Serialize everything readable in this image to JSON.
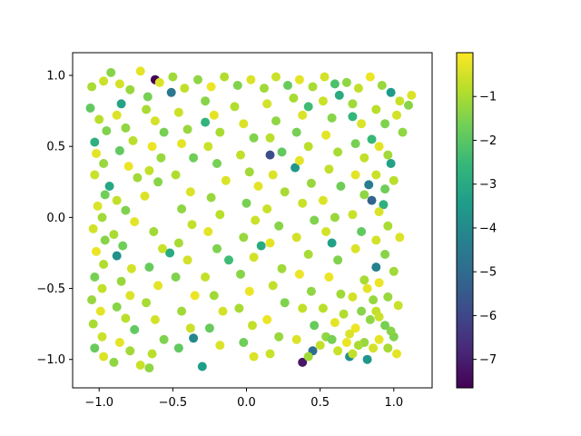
{
  "figure": {
    "background": "#ffffff"
  },
  "chart_data": {
    "type": "scatter",
    "title": "",
    "xlabel": "",
    "ylabel": "",
    "xlim": [
      -1.18,
      1.26
    ],
    "ylim": [
      -1.2,
      1.16
    ],
    "xticks": [
      -1.0,
      -0.5,
      0.0,
      0.5,
      1.0
    ],
    "yticks": [
      -1.0,
      -0.5,
      0.0,
      0.5,
      1.0
    ],
    "xtick_labels": [
      "−1.0",
      "−0.5",
      "0.0",
      "0.5",
      "1.0"
    ],
    "ytick_labels": [
      "−1.0",
      "−0.5",
      "0.0",
      "0.5",
      "1.0"
    ],
    "grid": false,
    "colormap": "viridis",
    "colorbar": {
      "range": [
        -7.65,
        0.0
      ],
      "ticks": [
        -1,
        -2,
        -3,
        -4,
        -5,
        -6,
        -7
      ],
      "tick_labels": [
        "−1",
        "−2",
        "−3",
        "−4",
        "−5",
        "−6",
        "−7"
      ]
    },
    "viridis_stops": [
      "#440154",
      "#482878",
      "#3e4989",
      "#31688e",
      "#26828e",
      "#1f9e89",
      "#35b779",
      "#6ece58",
      "#b5de2b",
      "#fde725"
    ],
    "points_note_x_y_c": "each point is [x, y, color value]",
    "points": [
      [
        -0.62,
        0.97,
        -7.6
      ],
      [
        0.16,
        0.44,
        -5.8
      ],
      [
        0.38,
        -1.02,
        -7.2
      ],
      [
        -0.51,
        0.88,
        -4.6
      ],
      [
        0.98,
        0.88,
        -3.5
      ],
      [
        0.85,
        0.12,
        -5.2
      ],
      [
        0.83,
        0.23,
        -4.4
      ],
      [
        -0.36,
        -0.85,
        -4.1
      ],
      [
        -0.85,
        0.8,
        -3.2
      ],
      [
        -0.88,
        -0.27,
        -3.8
      ],
      [
        0.45,
        -0.94,
        -4.9
      ],
      [
        -0.3,
        -1.05,
        -3.4
      ],
      [
        0.63,
        0.86,
        -3.0
      ],
      [
        0.7,
        -0.98,
        -3.9
      ],
      [
        0.33,
        0.35,
        -3.6
      ],
      [
        0.58,
        -0.18,
        -3.3
      ],
      [
        0.82,
        -1.0,
        -3.6
      ],
      [
        0.88,
        -0.35,
        -4.3
      ],
      [
        0.1,
        -0.2,
        -3.0
      ],
      [
        -1.03,
        0.53,
        -2.8
      ],
      [
        0.93,
        0.09,
        -2.8
      ],
      [
        0.72,
        0.71,
        -2.6
      ],
      [
        -0.93,
        0.22,
        -3.1
      ],
      [
        0.42,
        0.78,
        -2.4
      ],
      [
        -0.28,
        0.67,
        -2.7
      ],
      [
        0.6,
        0.94,
        -2.2
      ],
      [
        0.85,
        0.55,
        -2.5
      ],
      [
        0.98,
        0.38,
        -3.3
      ],
      [
        -0.12,
        -0.3,
        -2.4
      ],
      [
        -0.52,
        -0.25,
        -3.0
      ],
      [
        -1.05,
        0.92,
        -1.0
      ],
      [
        -0.97,
        0.96,
        -0.6
      ],
      [
        -0.92,
        1.02,
        -1.4
      ],
      [
        -0.86,
        0.94,
        -0.5
      ],
      [
        -0.79,
        0.9,
        -1.2
      ],
      [
        -0.72,
        1.03,
        -0.3
      ],
      [
        -0.67,
        0.85,
        -1.6
      ],
      [
        -0.59,
        0.95,
        -0.4
      ],
      [
        -0.5,
        0.99,
        -1.1
      ],
      [
        -0.42,
        0.91,
        -0.7
      ],
      [
        -0.33,
        0.97,
        -1.3
      ],
      [
        -0.24,
        0.92,
        -0.2
      ],
      [
        -0.15,
        0.99,
        -0.9
      ],
      [
        -0.06,
        0.93,
        -1.5
      ],
      [
        0.03,
        0.97,
        -0.4
      ],
      [
        0.12,
        0.91,
        -1.1
      ],
      [
        0.2,
        0.99,
        -0.6
      ],
      [
        0.28,
        0.93,
        -1.8
      ],
      [
        0.36,
        0.97,
        -0.3
      ],
      [
        0.45,
        0.92,
        -1.0
      ],
      [
        0.53,
        0.99,
        -0.5
      ],
      [
        0.68,
        0.95,
        -1.3
      ],
      [
        0.76,
        0.91,
        -0.7
      ],
      [
        0.84,
        0.99,
        -0.2
      ],
      [
        0.92,
        0.93,
        -1.2
      ],
      [
        1.04,
        0.82,
        -0.6
      ],
      [
        1.1,
        0.79,
        -1.4
      ],
      [
        1.12,
        0.86,
        -0.4
      ],
      [
        -1.06,
        0.77,
        -1.9
      ],
      [
        -1.0,
        0.69,
        -0.8
      ],
      [
        -0.95,
        0.61,
        -1.5
      ],
      [
        -1.02,
        0.45,
        -0.3
      ],
      [
        -0.97,
        0.38,
        -1.2
      ],
      [
        -1.03,
        0.3,
        -0.6
      ],
      [
        -0.96,
        0.16,
        -1.7
      ],
      [
        -1.01,
        0.08,
        -0.4
      ],
      [
        -0.98,
        0.0,
        -1.1
      ],
      [
        -1.04,
        -0.08,
        -0.5
      ],
      [
        -0.96,
        -0.16,
        -1.4
      ],
      [
        -1.02,
        -0.24,
        -0.2
      ],
      [
        -0.97,
        -0.33,
        -0.9
      ],
      [
        -1.03,
        -0.42,
        -1.6
      ],
      [
        -0.98,
        -0.5,
        -0.7
      ],
      [
        -1.05,
        -0.58,
        -1.2
      ],
      [
        -0.99,
        -0.66,
        -0.3
      ],
      [
        -1.04,
        -0.75,
        -1.0
      ],
      [
        -0.98,
        -0.84,
        -0.6
      ],
      [
        -1.03,
        -0.92,
        -1.8
      ],
      [
        -0.97,
        -0.98,
        -0.4
      ],
      [
        -0.9,
        -1.02,
        -1.3
      ],
      [
        -0.88,
        0.72,
        -0.4
      ],
      [
        -0.82,
        0.63,
        -1.3
      ],
      [
        -0.77,
        0.54,
        -0.8
      ],
      [
        -0.86,
        0.47,
        -1.9
      ],
      [
        -0.8,
        0.36,
        -0.2
      ],
      [
        -0.74,
        0.28,
        -1.1
      ],
      [
        -0.88,
        0.12,
        -0.7
      ],
      [
        -0.82,
        0.05,
        -1.5
      ],
      [
        -0.76,
        -0.03,
        -0.3
      ],
      [
        -0.9,
        -0.12,
        -1.0
      ],
      [
        -0.84,
        -0.2,
        -1.7
      ],
      [
        -0.78,
        -0.36,
        -0.5
      ],
      [
        -0.85,
        -0.45,
        -1.2
      ],
      [
        -0.79,
        -0.55,
        -0.4
      ],
      [
        -0.88,
        -0.63,
        -1.4
      ],
      [
        -0.82,
        -0.71,
        -0.8
      ],
      [
        -0.76,
        -0.79,
        -1.9
      ],
      [
        -0.86,
        -0.88,
        -0.3
      ],
      [
        -0.79,
        -0.94,
        -1.1
      ],
      [
        -0.72,
        -1.04,
        -0.6
      ],
      [
        -0.68,
        0.76,
        -1.0
      ],
      [
        -0.62,
        0.68,
        -0.5
      ],
      [
        -0.56,
        0.6,
        -1.6
      ],
      [
        -0.64,
        0.5,
        -0.2
      ],
      [
        -0.58,
        0.42,
        -1.2
      ],
      [
        -0.66,
        0.33,
        -0.7
      ],
      [
        -0.6,
        0.25,
        -1.4
      ],
      [
        -0.69,
        0.15,
        -0.4
      ],
      [
        -0.63,
        -0.1,
        -1.1
      ],
      [
        -0.57,
        -0.22,
        -0.6
      ],
      [
        -0.66,
        -0.35,
        -1.8
      ],
      [
        -0.6,
        -0.48,
        -0.3
      ],
      [
        -0.68,
        -0.6,
        -1.0
      ],
      [
        -0.62,
        -0.72,
        -0.5
      ],
      [
        -0.56,
        -0.86,
        -1.5
      ],
      [
        -0.64,
        -0.96,
        -0.8
      ],
      [
        -0.66,
        -1.06,
        -1.3
      ],
      [
        -0.46,
        0.74,
        -0.6
      ],
      [
        -0.4,
        0.62,
        -1.2
      ],
      [
        -0.44,
        0.52,
        -0.3
      ],
      [
        -0.36,
        0.42,
        -1.7
      ],
      [
        -0.48,
        0.3,
        -0.9
      ],
      [
        -0.38,
        0.18,
        -0.4
      ],
      [
        -0.44,
        0.06,
        -1.3
      ],
      [
        -0.37,
        -0.05,
        -0.7
      ],
      [
        -0.46,
        -0.18,
        -1.0
      ],
      [
        -0.4,
        -0.3,
        -0.5
      ],
      [
        -0.48,
        -0.42,
        -1.5
      ],
      [
        -0.35,
        -0.55,
        -0.2
      ],
      [
        -0.44,
        -0.66,
        -1.1
      ],
      [
        -0.38,
        -0.78,
        -0.6
      ],
      [
        -0.46,
        -0.92,
        -1.9
      ],
      [
        -0.28,
        0.82,
        -1.4
      ],
      [
        -0.22,
        0.72,
        -0.3
      ],
      [
        -0.18,
        0.6,
        -1.0
      ],
      [
        -0.26,
        0.5,
        -0.6
      ],
      [
        -0.2,
        0.38,
        -1.6
      ],
      [
        -0.14,
        0.26,
        -0.4
      ],
      [
        -0.24,
        0.14,
        -1.2
      ],
      [
        -0.18,
        0.02,
        -0.8
      ],
      [
        -0.26,
        -0.1,
        -0.3
      ],
      [
        -0.2,
        -0.22,
        -1.5
      ],
      [
        -0.28,
        -0.42,
        -0.7
      ],
      [
        -0.22,
        -0.55,
        -1.1
      ],
      [
        -0.16,
        -0.66,
        -0.5
      ],
      [
        -0.25,
        -0.78,
        -1.8
      ],
      [
        -0.18,
        -0.9,
        -0.4
      ],
      [
        -0.08,
        0.78,
        -0.9
      ],
      [
        -0.02,
        0.66,
        -0.4
      ],
      [
        0.05,
        0.56,
        -1.5
      ],
      [
        -0.04,
        0.44,
        -0.7
      ],
      [
        0.02,
        0.32,
        -1.1
      ],
      [
        0.08,
        0.22,
        -0.3
      ],
      [
        0.0,
        0.1,
        -1.6
      ],
      [
        0.06,
        -0.02,
        -0.6
      ],
      [
        -0.02,
        -0.14,
        -1.2
      ],
      [
        0.05,
        -0.28,
        -0.5
      ],
      [
        -0.04,
        -0.4,
        -1.4
      ],
      [
        0.02,
        -0.52,
        -0.2
      ],
      [
        -0.05,
        -0.64,
        -1.0
      ],
      [
        0.04,
        -0.76,
        -0.7
      ],
      [
        -0.02,
        -0.88,
        -1.7
      ],
      [
        0.05,
        -0.98,
        -0.4
      ],
      [
        0.14,
        0.8,
        -0.5
      ],
      [
        0.2,
        0.68,
        -1.3
      ],
      [
        0.16,
        0.56,
        -0.8
      ],
      [
        0.24,
        0.46,
        -1.9
      ],
      [
        0.18,
        0.3,
        -0.4
      ],
      [
        0.26,
        0.18,
        -1.0
      ],
      [
        0.14,
        0.06,
        -0.6
      ],
      [
        0.22,
        -0.06,
        -1.4
      ],
      [
        0.16,
        -0.18,
        -0.3
      ],
      [
        0.24,
        -0.36,
        -1.1
      ],
      [
        0.18,
        -0.48,
        -0.7
      ],
      [
        0.26,
        -0.6,
        -1.5
      ],
      [
        0.14,
        -0.72,
        -0.2
      ],
      [
        0.22,
        -0.84,
        -1.2
      ],
      [
        0.16,
        -0.96,
        -0.6
      ],
      [
        0.32,
        0.84,
        -1.0
      ],
      [
        0.38,
        0.72,
        -0.4
      ],
      [
        0.34,
        0.6,
        -1.6
      ],
      [
        0.42,
        0.5,
        -0.8
      ],
      [
        0.36,
        0.4,
        -0.3
      ],
      [
        0.44,
        0.24,
        -1.2
      ],
      [
        0.38,
        0.1,
        -0.6
      ],
      [
        0.46,
        -0.02,
        -1.5
      ],
      [
        0.34,
        -0.14,
        -0.5
      ],
      [
        0.42,
        -0.26,
        -1.0
      ],
      [
        0.36,
        -0.4,
        -0.2
      ],
      [
        0.44,
        -0.52,
        -1.3
      ],
      [
        0.38,
        -0.64,
        -0.7
      ],
      [
        0.46,
        -0.76,
        -1.8
      ],
      [
        0.34,
        -0.86,
        -0.4
      ],
      [
        0.42,
        -0.98,
        -1.1
      ],
      [
        0.52,
        0.82,
        -0.6
      ],
      [
        0.58,
        0.7,
        -1.4
      ],
      [
        0.54,
        0.58,
        -0.3
      ],
      [
        0.62,
        0.46,
        -1.0
      ],
      [
        0.56,
        0.34,
        -0.7
      ],
      [
        0.64,
        0.22,
        -1.7
      ],
      [
        0.52,
        0.12,
        -0.4
      ],
      [
        0.6,
        0.0,
        -1.2
      ],
      [
        0.54,
        -0.1,
        -0.5
      ],
      [
        0.62,
        -0.3,
        -1.5
      ],
      [
        0.56,
        -0.42,
        -0.2
      ],
      [
        0.64,
        -0.54,
        -1.1
      ],
      [
        0.52,
        -0.64,
        -0.8
      ],
      [
        0.6,
        -0.74,
        -0.3
      ],
      [
        0.54,
        -0.84,
        -1.3
      ],
      [
        0.62,
        -0.94,
        -0.6
      ],
      [
        0.72,
        0.8,
        -1.1
      ],
      [
        0.78,
        0.66,
        -0.4
      ],
      [
        0.74,
        0.52,
        -1.6
      ],
      [
        0.8,
        0.42,
        -0.7
      ],
      [
        0.74,
        0.3,
        -0.3
      ],
      [
        0.8,
        0.16,
        -1.3
      ],
      [
        0.72,
        0.02,
        -0.6
      ],
      [
        0.78,
        -0.1,
        -1.9
      ],
      [
        0.74,
        -0.22,
        -0.4
      ],
      [
        0.8,
        -0.44,
        -1.0
      ],
      [
        0.72,
        -0.56,
        -0.5
      ],
      [
        0.78,
        -0.66,
        -1.4
      ],
      [
        0.74,
        -0.78,
        -0.2
      ],
      [
        0.8,
        -0.88,
        -1.2
      ],
      [
        0.72,
        -0.96,
        -0.7
      ],
      [
        0.88,
        0.76,
        -0.8
      ],
      [
        0.94,
        0.66,
        -1.5
      ],
      [
        0.9,
        0.5,
        -0.3
      ],
      [
        0.96,
        0.44,
        -1.1
      ],
      [
        0.88,
        0.3,
        -0.6
      ],
      [
        0.94,
        0.2,
        -1.7
      ],
      [
        0.9,
        0.04,
        -0.4
      ],
      [
        0.96,
        -0.06,
        -1.0
      ],
      [
        0.88,
        -0.16,
        -0.5
      ],
      [
        0.94,
        -0.26,
        -1.4
      ],
      [
        0.9,
        -0.46,
        -0.2
      ],
      [
        0.96,
        -0.56,
        -1.2
      ],
      [
        0.88,
        -0.66,
        -0.7
      ],
      [
        0.94,
        -0.76,
        -1.6
      ],
      [
        0.9,
        -0.86,
        -0.3
      ],
      [
        0.96,
        -0.92,
        -1.0
      ],
      [
        1.02,
        0.72,
        -0.5
      ],
      [
        1.06,
        0.6,
        -1.3
      ],
      [
        1.0,
        0.26,
        -0.8
      ],
      [
        1.04,
        -0.14,
        -0.4
      ],
      [
        1.0,
        -0.38,
        -1.1
      ],
      [
        1.03,
        -0.62,
        -0.6
      ],
      [
        1.0,
        -0.84,
        -1.5
      ],
      [
        1.02,
        -0.96,
        -0.3
      ],
      [
        0.66,
        -0.68,
        -0.9
      ],
      [
        0.7,
        -0.82,
        -0.4
      ],
      [
        0.84,
        -0.72,
        -1.3
      ],
      [
        0.86,
        -0.92,
        -0.5
      ],
      [
        0.76,
        -0.9,
        -1.0
      ],
      [
        0.68,
        -0.88,
        -0.2
      ],
      [
        0.58,
        -0.86,
        -1.6
      ],
      [
        0.5,
        -0.9,
        -0.7
      ],
      [
        0.82,
        -0.5,
        -0.3
      ],
      [
        0.86,
        -0.58,
        -1.2
      ],
      [
        0.9,
        -0.7,
        -0.6
      ],
      [
        0.98,
        -0.8,
        -1.4
      ]
    ]
  }
}
